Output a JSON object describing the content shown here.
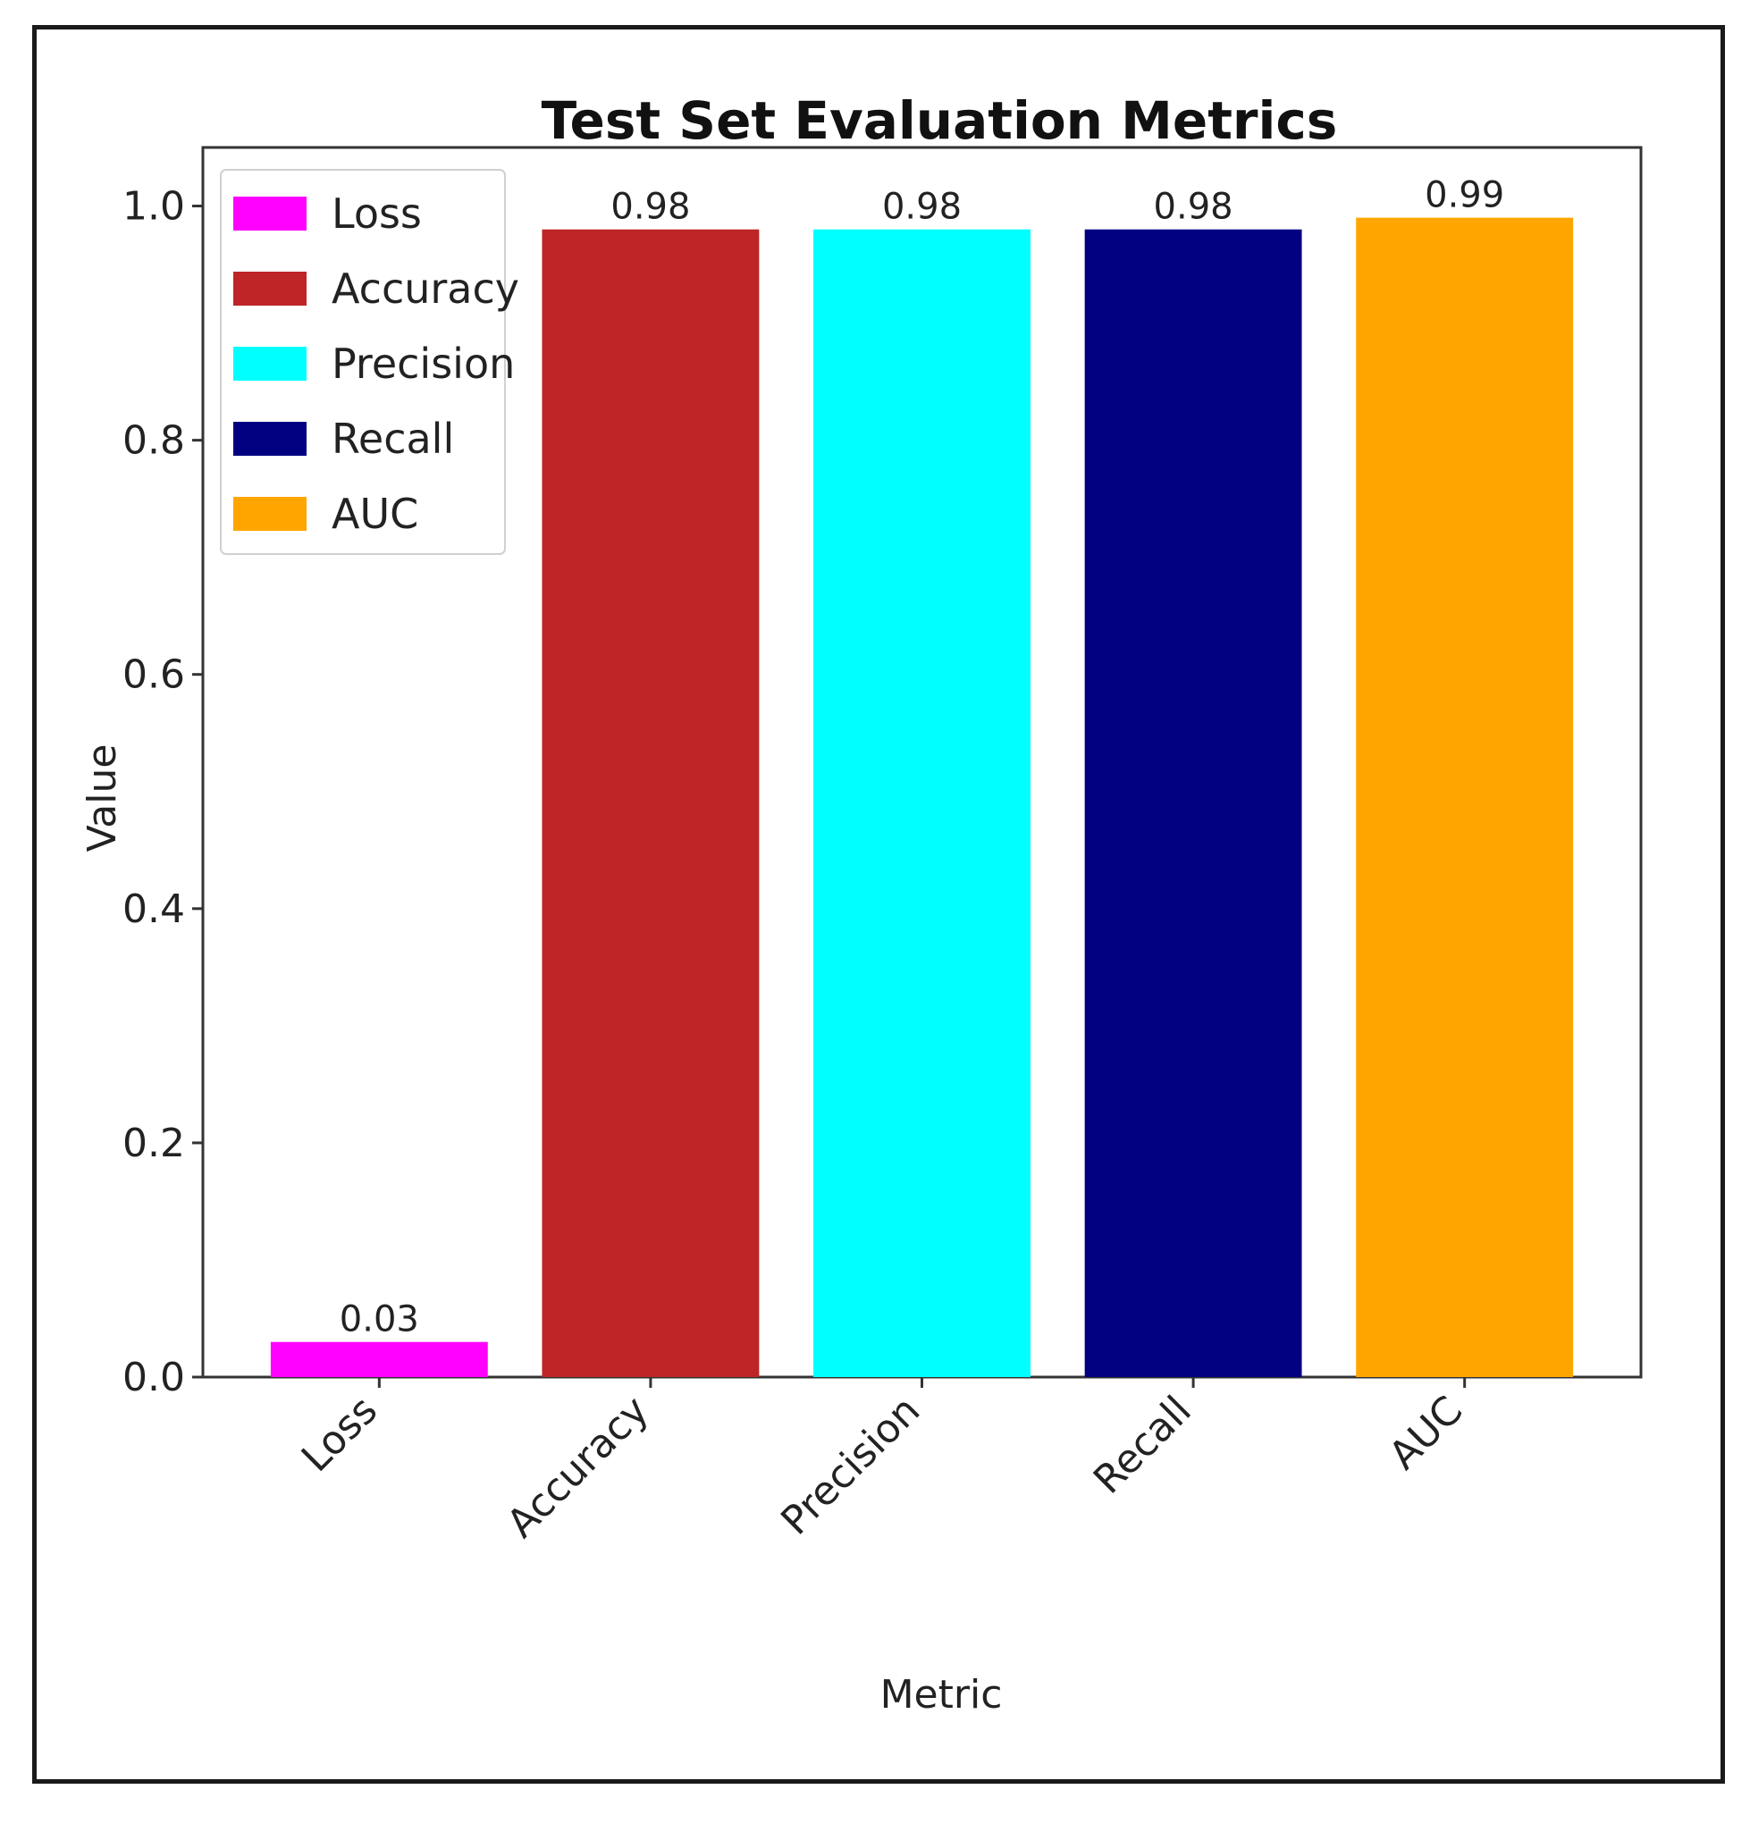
{
  "chart_data": {
    "type": "bar",
    "title": "Test Set Evaluation Metrics",
    "xlabel": "Metric",
    "ylabel": "Value",
    "categories": [
      "Loss",
      "Accuracy",
      "Precision",
      "Recall",
      "AUC"
    ],
    "values": [
      0.03,
      0.98,
      0.98,
      0.98,
      0.99
    ],
    "data_labels": [
      "0.03",
      "0.98",
      "0.98",
      "0.98",
      "0.99"
    ],
    "colors": [
      "#ff00ff",
      "#be2526",
      "#00ffff",
      "#000080",
      "#ffa500"
    ],
    "ylim": [
      0,
      1.05
    ],
    "yticks": [
      0.0,
      0.2,
      0.4,
      0.6,
      0.8,
      1.0
    ],
    "ytick_labels": [
      "0.0",
      "0.2",
      "0.4",
      "0.6",
      "0.8",
      "1.0"
    ],
    "grid": false,
    "legend_position": "top-left",
    "legend": [
      "Loss",
      "Accuracy",
      "Precision",
      "Recall",
      "AUC"
    ]
  }
}
